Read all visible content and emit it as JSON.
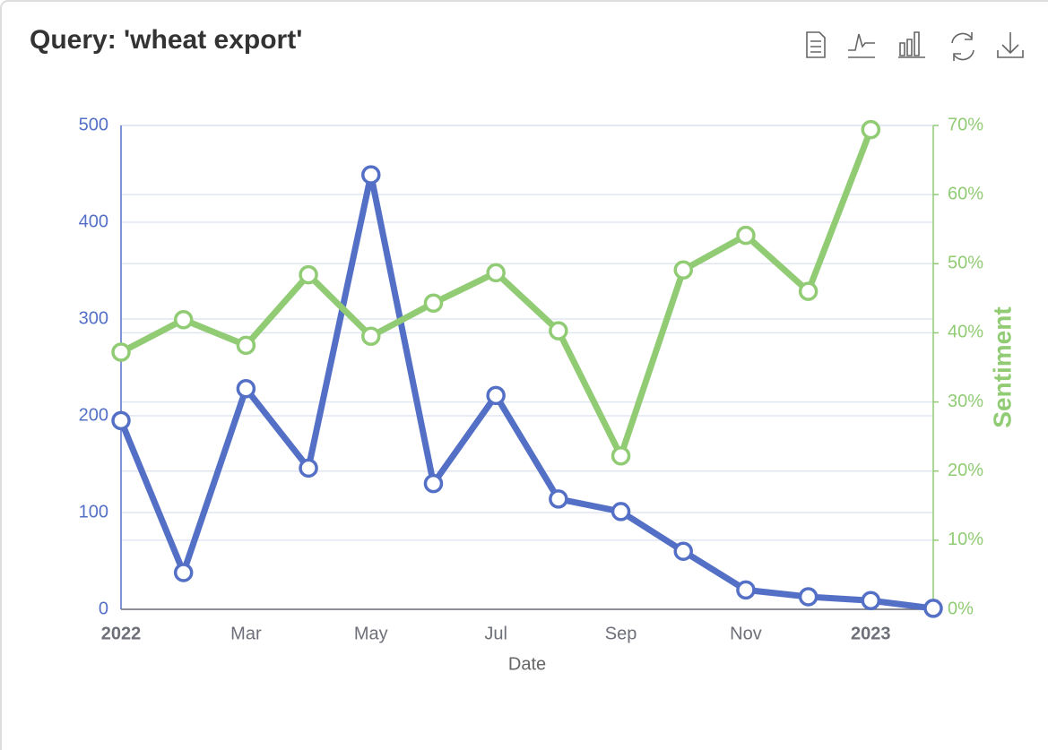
{
  "chart_data": {
    "type": "line",
    "title": "Query: 'wheat export'",
    "categories": [
      "2022",
      null,
      "Mar",
      null,
      "May",
      null,
      "Jul",
      null,
      "Sep",
      null,
      "Nov",
      null,
      "2023",
      null
    ],
    "xlabel": "Date",
    "y2label": "Sentiment",
    "series": [
      {
        "color": "#5470c6",
        "values": [
          195,
          38,
          228,
          146,
          449,
          130,
          221,
          114,
          101,
          60,
          20,
          13,
          9,
          1
        ]
      },
      {
        "color": "#91cc75",
        "axis": "y2",
        "values": [
          37.2,
          41.9,
          38.2,
          48.4,
          39.5,
          44.3,
          48.7,
          40.3,
          22.2,
          49.1,
          54.1,
          46.0,
          69.4,
          null
        ]
      }
    ],
    "ylim": [
      0,
      500
    ],
    "yticks": [
      0,
      100,
      200,
      300,
      400,
      500
    ],
    "y2lim": [
      0,
      70
    ],
    "y2ticks": [
      {
        "value": 0,
        "label": "0%"
      },
      {
        "value": 10,
        "label": "10%"
      },
      {
        "value": 20,
        "label": "20%"
      },
      {
        "value": 30,
        "label": "30%"
      },
      {
        "value": 40,
        "label": "40%"
      },
      {
        "value": 50,
        "label": "50%"
      },
      {
        "value": 60,
        "label": "60%"
      },
      {
        "value": 70,
        "label": "70%"
      }
    ],
    "grid": true
  }
}
